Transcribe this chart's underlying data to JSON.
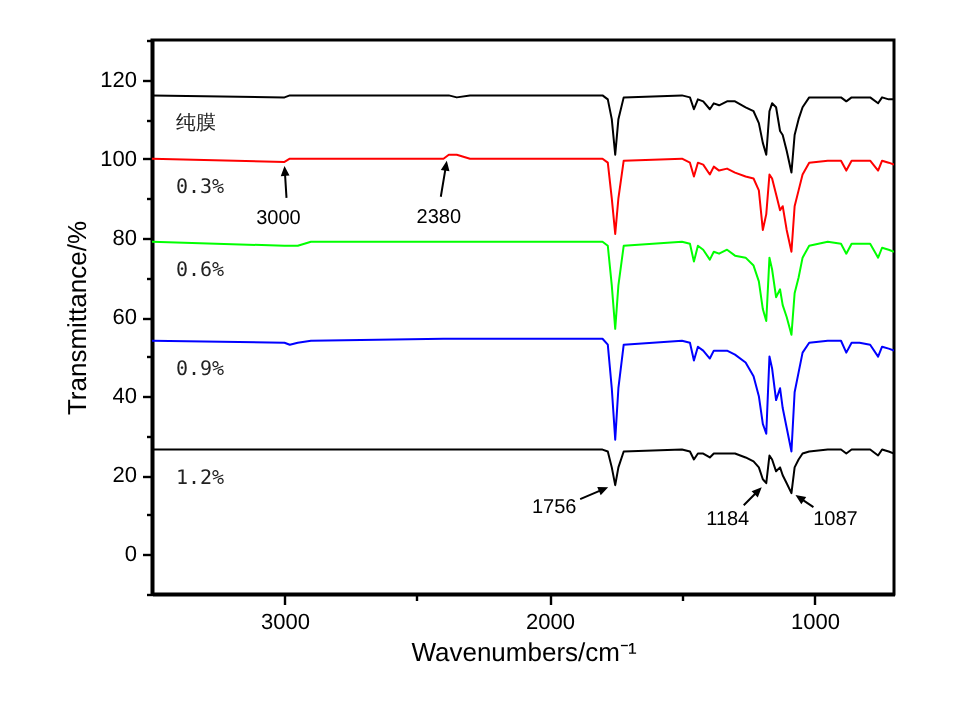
{
  "chart_data": {
    "type": "line",
    "xlabel": "Wavenumbers/cm⁻¹",
    "ylabel": "Transmittance/%",
    "xlim": [
      3500,
      700
    ],
    "ylim": [
      -10,
      130
    ],
    "xticks": [
      3000,
      {
        "value": 2500,
        "label": null
      },
      2000,
      {
        "value": 1500,
        "label": null
      },
      1000
    ],
    "yticks": [
      {
        "value": -10,
        "label": null
      },
      0,
      {
        "value": 10,
        "label": null
      },
      20,
      {
        "value": 30,
        "label": null
      },
      40,
      {
        "value": 50,
        "label": null
      },
      60,
      {
        "value": 70,
        "label": null
      },
      80,
      {
        "value": 90,
        "label": null
      },
      100,
      {
        "value": 110,
        "label": null
      },
      120,
      {
        "value": 130,
        "label": null
      }
    ],
    "grid": false,
    "legend": false,
    "marker": "none",
    "line_style": "solid",
    "x": [
      3500,
      3000,
      2980,
      2950,
      2900,
      2400,
      2380,
      2350,
      2300,
      1800,
      1780,
      1765,
      1752,
      1740,
      1720,
      1500,
      1470,
      1455,
      1440,
      1420,
      1395,
      1380,
      1360,
      1330,
      1300,
      1260,
      1230,
      1210,
      1195,
      1182,
      1170,
      1160,
      1145,
      1130,
      1120,
      1105,
      1087,
      1075,
      1060,
      1045,
      1020,
      950,
      900,
      880,
      860,
      830,
      790,
      760,
      745,
      720,
      700
    ],
    "series": [
      {
        "name": "纯膜",
        "color": "#000000",
        "values": [
          116,
          115.5,
          116,
          116,
          116,
          116,
          116,
          115.5,
          116,
          116,
          115,
          110,
          101,
          110,
          115.5,
          116,
          115.5,
          112.5,
          115,
          114.5,
          112.5,
          114,
          113.5,
          114.5,
          114.5,
          113,
          112,
          109,
          104,
          101,
          112,
          114,
          113,
          107,
          106,
          102,
          96.5,
          106,
          110,
          113,
          115.5,
          115.5,
          115.5,
          114.5,
          115.5,
          115.5,
          115.5,
          114,
          115.5,
          115,
          115
        ]
      },
      {
        "name": "0.3%",
        "color": "#ff0000",
        "values": [
          100,
          99.2,
          100,
          100,
          100,
          100,
          101,
          101,
          100,
          100,
          99,
          90,
          81,
          90,
          99.5,
          100,
          99,
          95.5,
          99,
          98.5,
          96,
          98,
          97,
          97.5,
          96.5,
          95.5,
          95,
          92,
          82,
          86,
          96,
          95,
          91,
          87,
          88,
          82,
          76.5,
          88,
          92,
          96,
          99,
          99.5,
          99.5,
          97,
          99.5,
          99.5,
          99.5,
          97,
          99.5,
          99,
          98.5
        ]
      },
      {
        "name": "0.6%",
        "color": "#00ff00",
        "values": [
          79,
          78,
          78,
          78,
          79,
          79,
          79,
          79,
          79,
          79,
          78,
          68,
          57,
          68,
          78,
          79,
          78.5,
          74,
          78,
          77,
          74.5,
          76.5,
          76,
          77,
          75.5,
          75,
          73,
          69,
          62,
          59,
          75,
          72,
          65,
          67,
          63,
          60,
          55.5,
          66,
          70,
          75,
          78,
          79,
          78.5,
          76,
          78.5,
          78.5,
          78.5,
          75,
          77.5,
          77,
          76.5
        ]
      },
      {
        "name": "0.9%",
        "color": "#0000ff",
        "values": [
          54,
          53.5,
          53,
          53.5,
          54,
          54.5,
          54.5,
          54.5,
          54.5,
          54.5,
          53,
          42,
          29,
          42,
          53,
          54,
          53.5,
          49,
          52.5,
          51.5,
          49.5,
          51.5,
          51.5,
          51.5,
          50.5,
          48.5,
          45,
          40,
          33,
          30.5,
          50,
          47,
          39,
          42,
          37,
          32,
          26,
          41,
          46,
          51,
          53.5,
          54,
          54,
          51,
          53.5,
          53.5,
          53,
          50,
          52.5,
          52,
          51.5
        ]
      },
      {
        "name": "1.2%",
        "color": "#000000",
        "values": [
          26.5,
          26.5,
          26.5,
          26.5,
          26.5,
          26.5,
          26.5,
          26.5,
          26.5,
          26.5,
          26,
          22,
          17.5,
          22,
          26,
          26.5,
          26,
          24,
          25.5,
          25.5,
          24.5,
          25.5,
          25.5,
          25.5,
          25.5,
          24.5,
          23.5,
          22,
          19,
          18,
          25,
          24,
          21,
          22,
          20,
          18,
          15.5,
          22,
          24,
          25.5,
          26,
          26.5,
          26.5,
          25.5,
          26.5,
          26.5,
          26.5,
          25,
          26.5,
          26,
          25.5
        ]
      }
    ],
    "annotations": [
      {
        "text": "3000",
        "x": 3000,
        "y": 99.2
      },
      {
        "text": "2380",
        "x": 2380,
        "y": 101
      },
      {
        "text": "1756",
        "x": 1756,
        "y": 17.5
      },
      {
        "text": "1184",
        "x": 1184,
        "y": 18
      },
      {
        "text": "1087",
        "x": 1087,
        "y": 15.5
      }
    ]
  }
}
